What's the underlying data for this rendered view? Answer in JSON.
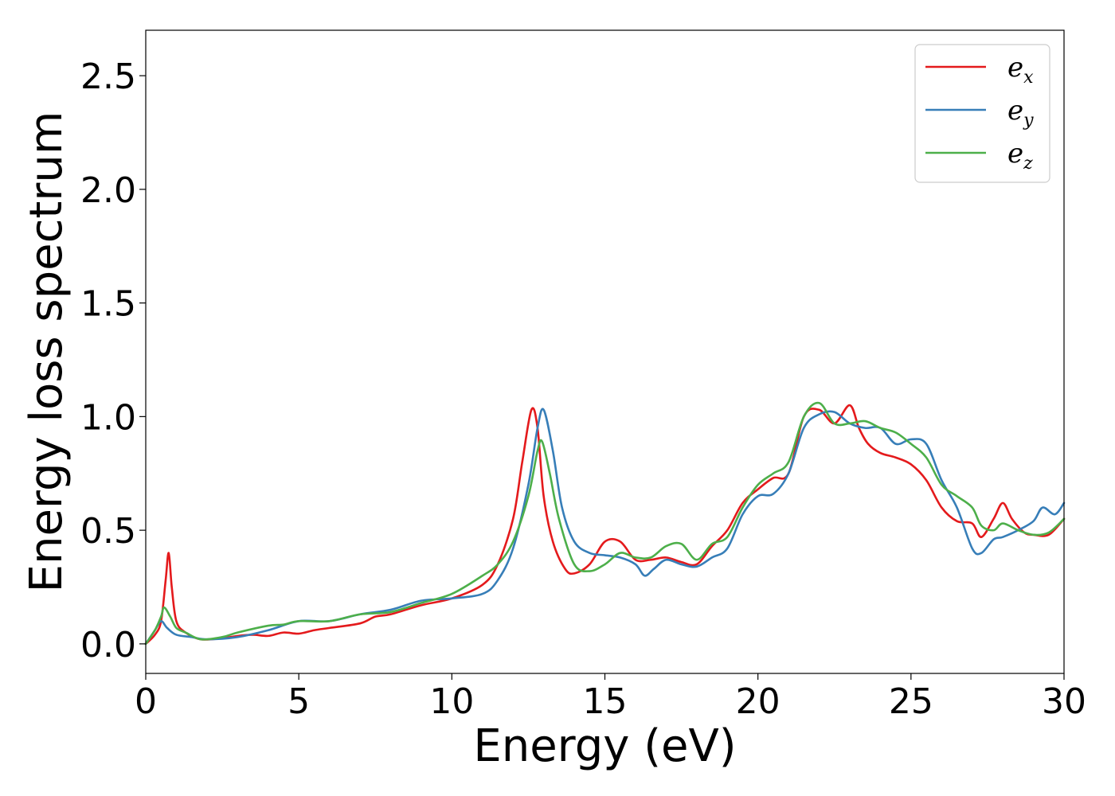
{
  "chart_data": {
    "type": "line",
    "title": "",
    "xlabel": "Energy (eV)",
    "ylabel": "Energy loss spectrum",
    "xlim": [
      0,
      30
    ],
    "ylim": [
      -0.13,
      2.7
    ],
    "xticks": [
      0,
      5,
      10,
      15,
      20,
      25,
      30
    ],
    "yticks": [
      0.0,
      0.5,
      1.0,
      1.5,
      2.0,
      2.5
    ],
    "xtick_labels": [
      "0",
      "5",
      "10",
      "15",
      "20",
      "25",
      "30"
    ],
    "ytick_labels": [
      "0.0",
      "0.5",
      "1.0",
      "1.5",
      "2.0",
      "2.5"
    ],
    "grid": false,
    "legend_position": "top-right",
    "series": [
      {
        "name": "e_x",
        "base": "e",
        "sub": "x",
        "color": "#e41a1c",
        "points": [
          [
            0,
            0.0
          ],
          [
            0.3,
            0.04
          ],
          [
            0.5,
            0.1
          ],
          [
            0.65,
            0.28
          ],
          [
            0.75,
            0.4
          ],
          [
            0.85,
            0.25
          ],
          [
            1.0,
            0.1
          ],
          [
            1.3,
            0.05
          ],
          [
            1.8,
            0.02
          ],
          [
            2.5,
            0.025
          ],
          [
            3.0,
            0.035
          ],
          [
            3.5,
            0.04
          ],
          [
            4.0,
            0.035
          ],
          [
            4.5,
            0.05
          ],
          [
            5.0,
            0.045
          ],
          [
            5.5,
            0.06
          ],
          [
            6.0,
            0.07
          ],
          [
            7.0,
            0.09
          ],
          [
            7.5,
            0.12
          ],
          [
            8.0,
            0.13
          ],
          [
            9.0,
            0.17
          ],
          [
            10.0,
            0.2
          ],
          [
            11.0,
            0.26
          ],
          [
            11.5,
            0.35
          ],
          [
            12.0,
            0.55
          ],
          [
            12.3,
            0.8
          ],
          [
            12.6,
            1.03
          ],
          [
            12.8,
            0.95
          ],
          [
            13.0,
            0.65
          ],
          [
            13.3,
            0.45
          ],
          [
            13.7,
            0.33
          ],
          [
            14.0,
            0.31
          ],
          [
            14.5,
            0.35
          ],
          [
            15.0,
            0.45
          ],
          [
            15.5,
            0.45
          ],
          [
            16.0,
            0.37
          ],
          [
            16.5,
            0.37
          ],
          [
            17.0,
            0.38
          ],
          [
            17.5,
            0.36
          ],
          [
            18.0,
            0.35
          ],
          [
            18.5,
            0.43
          ],
          [
            19.0,
            0.5
          ],
          [
            19.5,
            0.62
          ],
          [
            20.0,
            0.68
          ],
          [
            20.5,
            0.73
          ],
          [
            21.0,
            0.75
          ],
          [
            21.5,
            1.0
          ],
          [
            22.0,
            1.03
          ],
          [
            22.5,
            0.97
          ],
          [
            23.0,
            1.05
          ],
          [
            23.3,
            0.95
          ],
          [
            23.6,
            0.88
          ],
          [
            24.0,
            0.84
          ],
          [
            24.5,
            0.82
          ],
          [
            25.0,
            0.79
          ],
          [
            25.5,
            0.72
          ],
          [
            26.0,
            0.6
          ],
          [
            26.5,
            0.54
          ],
          [
            27.0,
            0.53
          ],
          [
            27.3,
            0.47
          ],
          [
            27.7,
            0.55
          ],
          [
            28.0,
            0.62
          ],
          [
            28.3,
            0.55
          ],
          [
            28.7,
            0.49
          ],
          [
            29.0,
            0.48
          ],
          [
            29.5,
            0.48
          ],
          [
            30.0,
            0.55
          ]
        ]
      },
      {
        "name": "e_y",
        "base": "e",
        "sub": "y",
        "color": "#377eb8",
        "points": [
          [
            0,
            0.0
          ],
          [
            0.3,
            0.06
          ],
          [
            0.5,
            0.1
          ],
          [
            0.7,
            0.07
          ],
          [
            1.0,
            0.04
          ],
          [
            1.5,
            0.03
          ],
          [
            2.0,
            0.02
          ],
          [
            3.0,
            0.03
          ],
          [
            4.0,
            0.06
          ],
          [
            5.0,
            0.1
          ],
          [
            6.0,
            0.1
          ],
          [
            7.0,
            0.13
          ],
          [
            8.0,
            0.15
          ],
          [
            9.0,
            0.19
          ],
          [
            10.0,
            0.2
          ],
          [
            11.0,
            0.22
          ],
          [
            11.5,
            0.28
          ],
          [
            12.0,
            0.42
          ],
          [
            12.5,
            0.7
          ],
          [
            12.8,
            0.95
          ],
          [
            13.0,
            1.03
          ],
          [
            13.3,
            0.85
          ],
          [
            13.6,
            0.6
          ],
          [
            14.0,
            0.45
          ],
          [
            14.5,
            0.4
          ],
          [
            15.0,
            0.39
          ],
          [
            15.5,
            0.38
          ],
          [
            16.0,
            0.35
          ],
          [
            16.3,
            0.3
          ],
          [
            16.6,
            0.33
          ],
          [
            17.0,
            0.37
          ],
          [
            17.5,
            0.35
          ],
          [
            18.0,
            0.34
          ],
          [
            18.5,
            0.38
          ],
          [
            19.0,
            0.42
          ],
          [
            19.5,
            0.57
          ],
          [
            20.0,
            0.65
          ],
          [
            20.5,
            0.66
          ],
          [
            21.0,
            0.75
          ],
          [
            21.5,
            0.95
          ],
          [
            22.0,
            1.01
          ],
          [
            22.5,
            1.02
          ],
          [
            23.0,
            0.97
          ],
          [
            23.5,
            0.95
          ],
          [
            24.0,
            0.95
          ],
          [
            24.5,
            0.88
          ],
          [
            25.0,
            0.9
          ],
          [
            25.5,
            0.88
          ],
          [
            26.0,
            0.72
          ],
          [
            26.5,
            0.6
          ],
          [
            27.0,
            0.42
          ],
          [
            27.3,
            0.4
          ],
          [
            27.7,
            0.46
          ],
          [
            28.0,
            0.47
          ],
          [
            28.5,
            0.5
          ],
          [
            29.0,
            0.54
          ],
          [
            29.3,
            0.6
          ],
          [
            29.7,
            0.57
          ],
          [
            30.0,
            0.62
          ]
        ]
      },
      {
        "name": "e_z",
        "base": "e",
        "sub": "z",
        "color": "#4daf4a",
        "points": [
          [
            0,
            0.0
          ],
          [
            0.3,
            0.06
          ],
          [
            0.5,
            0.12
          ],
          [
            0.6,
            0.16
          ],
          [
            0.8,
            0.12
          ],
          [
            1.0,
            0.07
          ],
          [
            1.3,
            0.05
          ],
          [
            1.8,
            0.02
          ],
          [
            2.5,
            0.03
          ],
          [
            3.0,
            0.05
          ],
          [
            4.0,
            0.08
          ],
          [
            4.5,
            0.085
          ],
          [
            5.0,
            0.1
          ],
          [
            6.0,
            0.1
          ],
          [
            7.0,
            0.13
          ],
          [
            8.0,
            0.14
          ],
          [
            9.0,
            0.18
          ],
          [
            10.0,
            0.22
          ],
          [
            11.0,
            0.3
          ],
          [
            11.5,
            0.35
          ],
          [
            12.0,
            0.45
          ],
          [
            12.5,
            0.65
          ],
          [
            12.8,
            0.85
          ],
          [
            12.95,
            0.89
          ],
          [
            13.2,
            0.75
          ],
          [
            13.5,
            0.55
          ],
          [
            14.0,
            0.35
          ],
          [
            14.5,
            0.32
          ],
          [
            15.0,
            0.35
          ],
          [
            15.5,
            0.4
          ],
          [
            16.0,
            0.38
          ],
          [
            16.5,
            0.38
          ],
          [
            17.0,
            0.43
          ],
          [
            17.5,
            0.44
          ],
          [
            18.0,
            0.37
          ],
          [
            18.5,
            0.44
          ],
          [
            19.0,
            0.47
          ],
          [
            19.5,
            0.6
          ],
          [
            20.0,
            0.7
          ],
          [
            20.5,
            0.75
          ],
          [
            21.0,
            0.8
          ],
          [
            21.5,
            1.0
          ],
          [
            22.0,
            1.06
          ],
          [
            22.5,
            0.97
          ],
          [
            23.0,
            0.97
          ],
          [
            23.5,
            0.98
          ],
          [
            24.0,
            0.95
          ],
          [
            24.5,
            0.93
          ],
          [
            25.0,
            0.88
          ],
          [
            25.5,
            0.82
          ],
          [
            26.0,
            0.7
          ],
          [
            26.5,
            0.65
          ],
          [
            27.0,
            0.6
          ],
          [
            27.3,
            0.52
          ],
          [
            27.7,
            0.5
          ],
          [
            28.0,
            0.53
          ],
          [
            28.5,
            0.5
          ],
          [
            29.0,
            0.48
          ],
          [
            29.5,
            0.49
          ],
          [
            30.0,
            0.55
          ]
        ]
      }
    ]
  }
}
